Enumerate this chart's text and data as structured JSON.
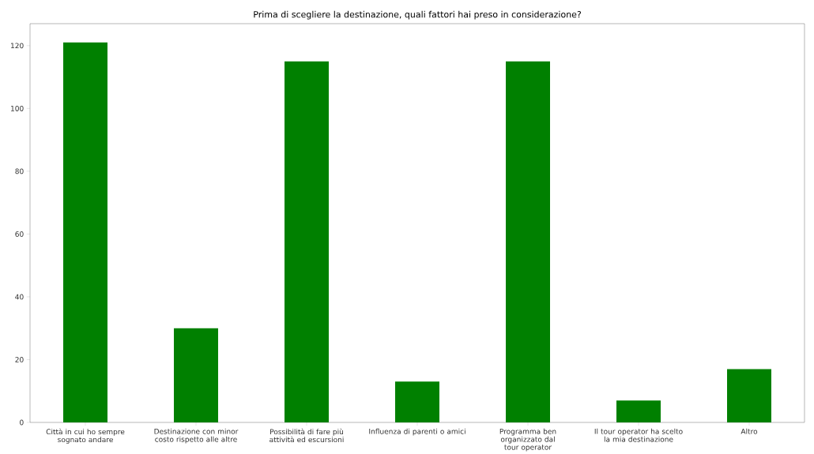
{
  "chart_data": {
    "type": "bar",
    "title": "Prima di scegliere la destinazione, quali fattori hai preso in considerazione?",
    "categories": [
      "Città in cui ho sempre sognato andare",
      "Destinazione con minor costo rispetto alle altre",
      "Possibilità di fare più attività ed escursioni",
      "Influenza di parenti o amici",
      "Programma ben organizzato dal tour operator",
      "Il tour operator ha scelto la mia destinazione",
      "Altro"
    ],
    "values": [
      121,
      30,
      115,
      13,
      115,
      7,
      17
    ],
    "color": "#008000",
    "ylim": [
      0,
      127
    ],
    "yticks": [
      0,
      20,
      40,
      60,
      80,
      100,
      120
    ],
    "grid": false
  }
}
